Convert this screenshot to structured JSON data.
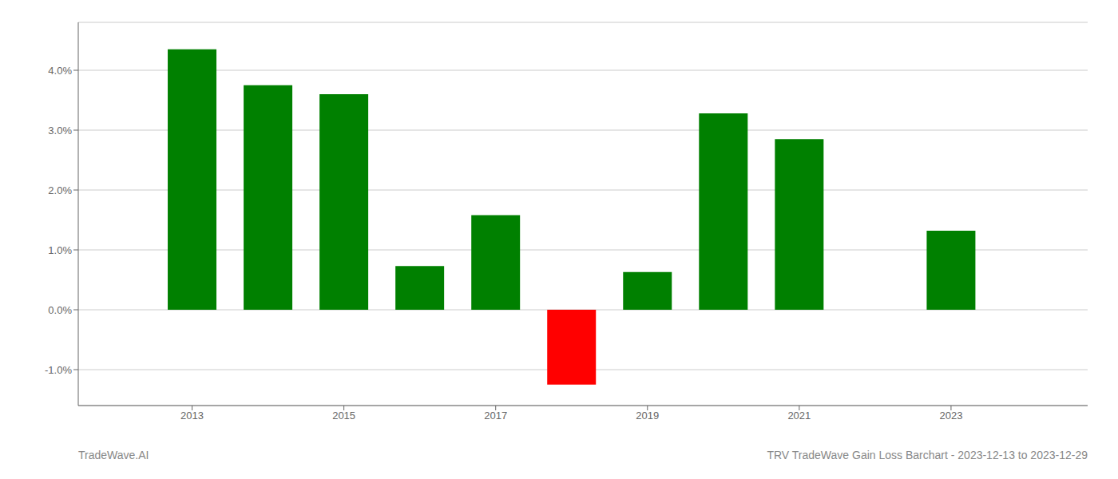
{
  "chart_data": {
    "type": "bar",
    "title": "TRV TradeWave Gain Loss Barchart - 2023-12-13 to 2023-12-29",
    "annotations": [
      "TradeWave.AI"
    ],
    "x": [
      2013,
      2014,
      2015,
      2016,
      2017,
      2018,
      2019,
      2020,
      2021,
      2023
    ],
    "values": [
      0.0435,
      0.0375,
      0.036,
      0.0073,
      0.0158,
      -0.0125,
      0.0063,
      0.0328,
      0.0285,
      0.0132
    ],
    "colors": [
      "#008000",
      "#008000",
      "#008000",
      "#008000",
      "#008000",
      "#ff0000",
      "#008000",
      "#008000",
      "#008000",
      "#008000"
    ],
    "xlim": [
      2011.5,
      2024.8
    ],
    "xticks": [
      2013,
      2015,
      2017,
      2019,
      2021,
      2023
    ],
    "ylim": [
      -0.016,
      0.048
    ],
    "yticks": [
      {
        "value": -0.01,
        "label": "-1.0%"
      },
      {
        "value": 0.0,
        "label": "0.0%"
      },
      {
        "value": 0.01,
        "label": "1.0%"
      },
      {
        "value": 0.02,
        "label": "2.0%"
      },
      {
        "value": 0.03,
        "label": "3.0%"
      },
      {
        "value": 0.04,
        "label": "4.0%"
      }
    ],
    "grid": true
  }
}
